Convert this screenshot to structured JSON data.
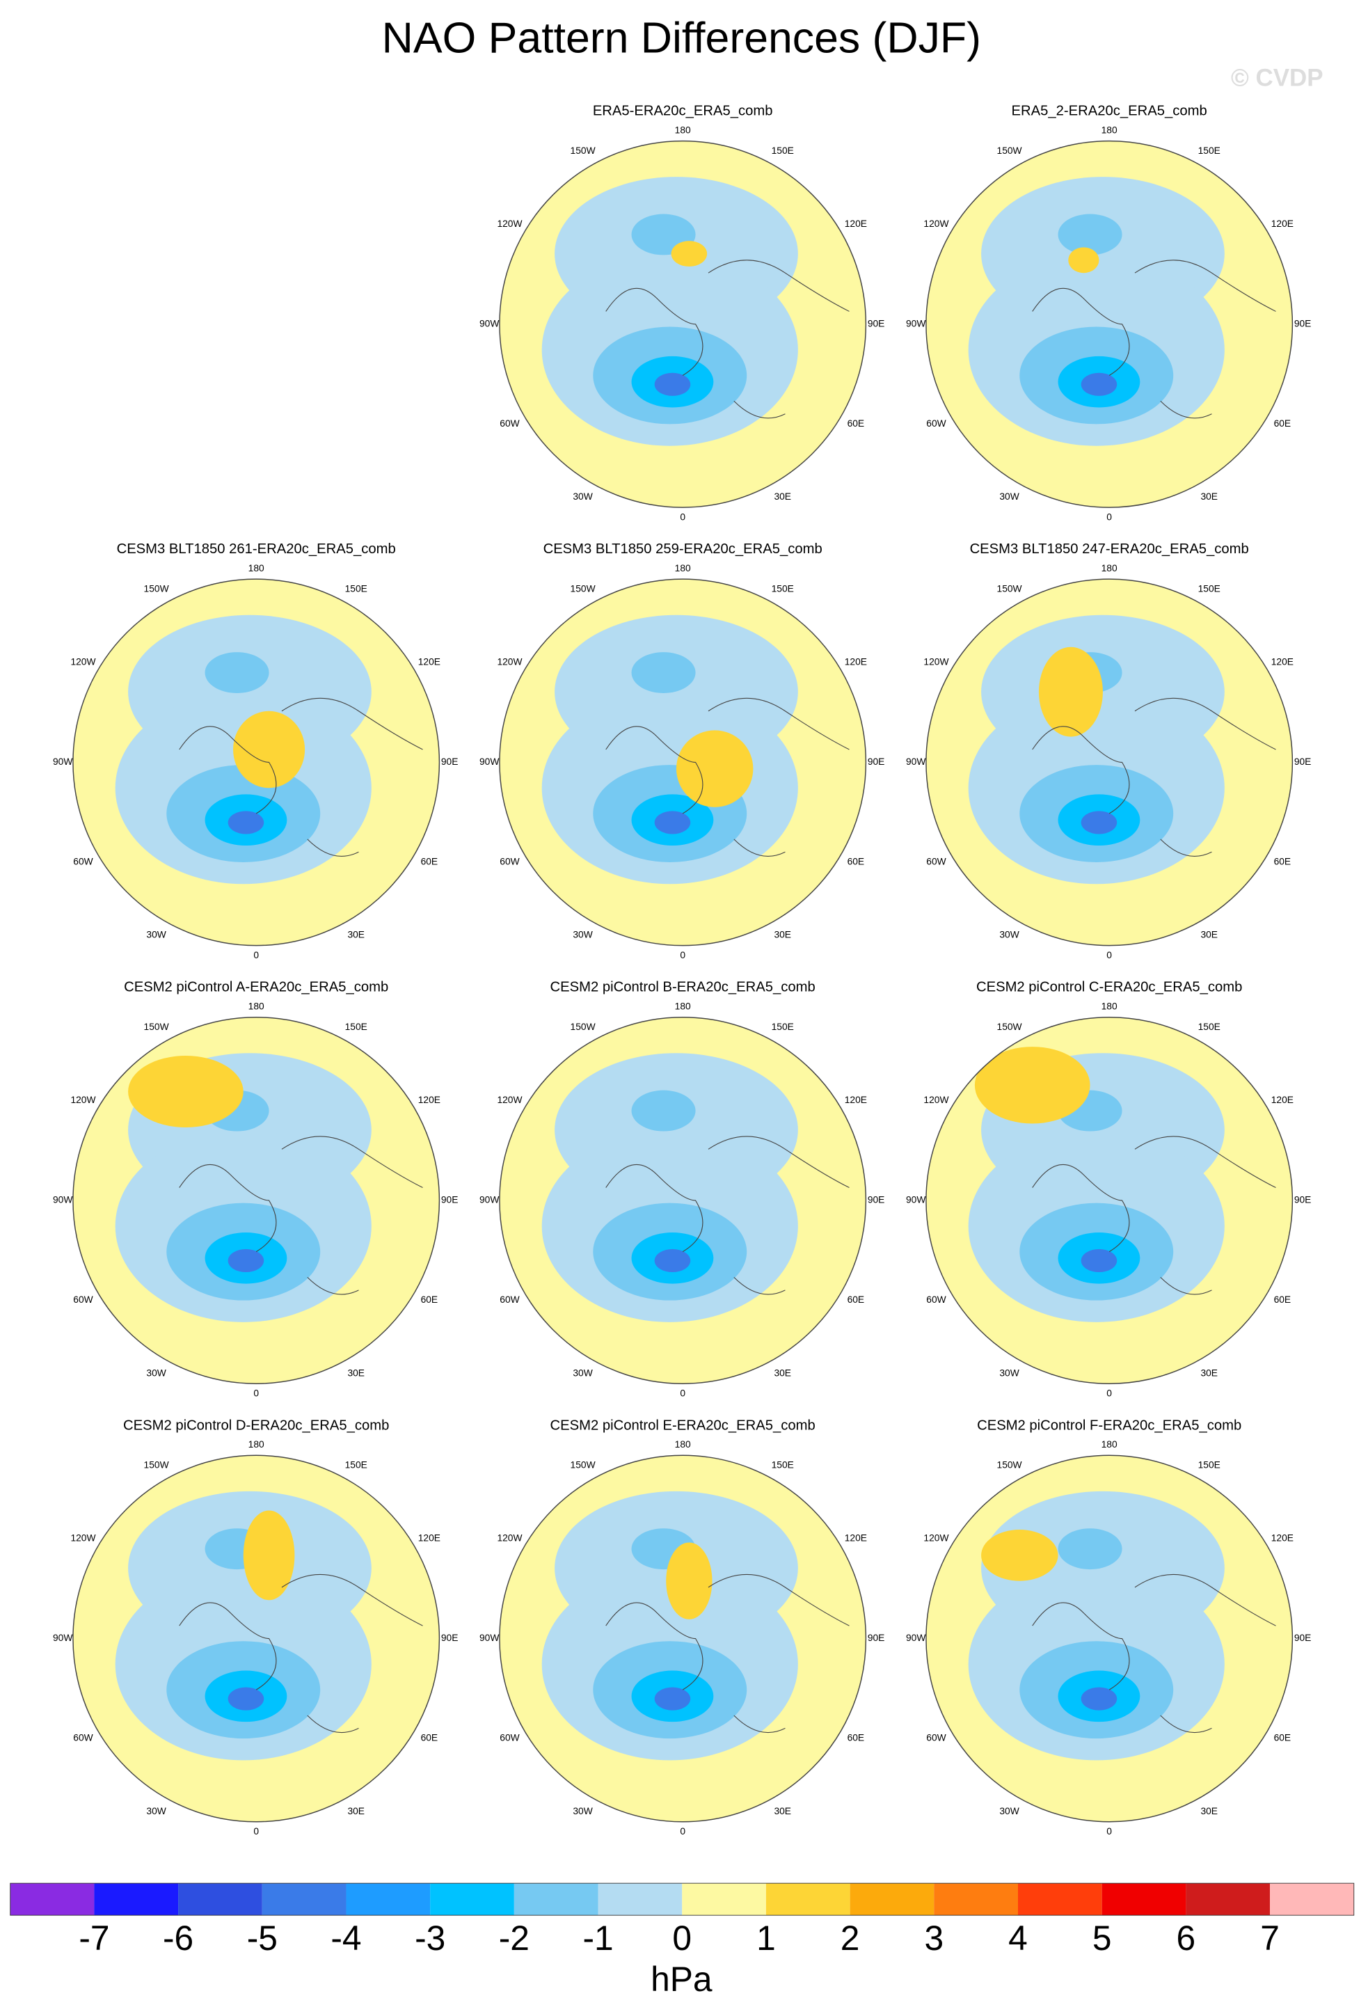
{
  "title": "NAO Pattern Differences (DJF)",
  "watermark": "© CVDP",
  "panels": [
    {
      "title": "ERA5-ERA20c_ERA5_comb"
    },
    {
      "title": "ERA5_2-ERA20c_ERA5_comb"
    },
    {
      "title": "CESM3 BLT1850 261-ERA20c_ERA5_comb"
    },
    {
      "title": "CESM3 BLT1850 259-ERA20c_ERA5_comb"
    },
    {
      "title": "CESM3 BLT1850 247-ERA20c_ERA5_comb"
    },
    {
      "title": "CESM2 piControl A-ERA20c_ERA5_comb"
    },
    {
      "title": "CESM2 piControl B-ERA20c_ERA5_comb"
    },
    {
      "title": "CESM2 piControl C-ERA20c_ERA5_comb"
    },
    {
      "title": "CESM2 piControl D-ERA20c_ERA5_comb"
    },
    {
      "title": "CESM2 piControl E-ERA20c_ERA5_comb"
    },
    {
      "title": "CESM2 piControl F-ERA20c_ERA5_comb"
    }
  ],
  "longitude_labels": [
    "180",
    "150E",
    "120E",
    "90E",
    "60E",
    "30E",
    "0",
    "30W",
    "60W",
    "90W",
    "120W",
    "150W"
  ],
  "colorbar": {
    "levels": [
      -7,
      -6,
      -5,
      -4,
      -3,
      -2,
      -1,
      0,
      1,
      2,
      3,
      4,
      5,
      6,
      7
    ],
    "colors": [
      "#8a2be2",
      "#1a1aff",
      "#2e4fe0",
      "#3a7be8",
      "#1e9cff",
      "#00c2ff",
      "#76c9f2",
      "#b4dcf2",
      "#fdf9a2",
      "#fdd536",
      "#fcaa0c",
      "#fe7d10",
      "#ff3e0b",
      "#f00000",
      "#cf1c1c",
      "#ffb8b8"
    ],
    "unit": "hPa"
  }
}
